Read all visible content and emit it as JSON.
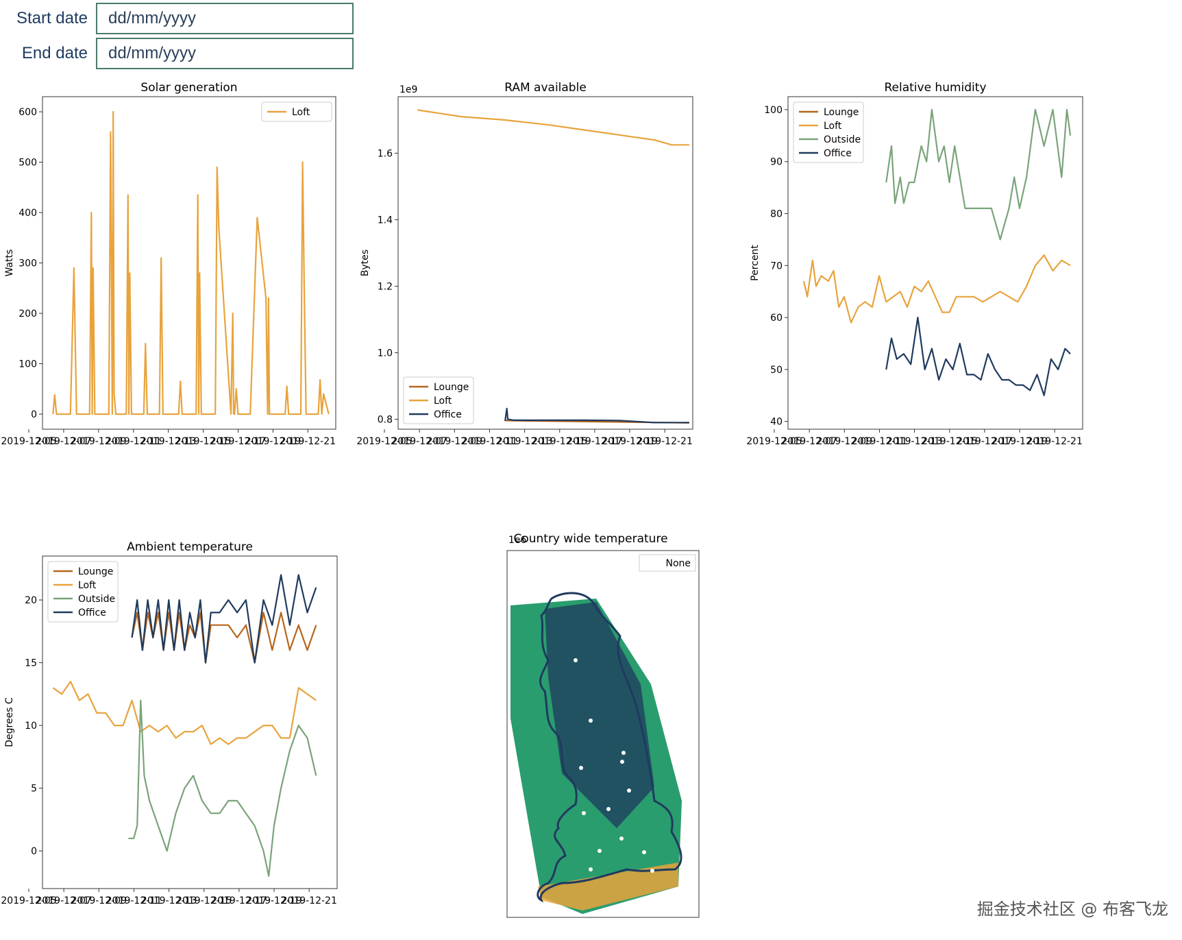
{
  "form": {
    "start_label": "Start date",
    "start_placeholder": "dd/mm/yyyy",
    "end_label": "End date",
    "end_placeholder": "dd/mm/yyyy"
  },
  "colors": {
    "lounge": "#b5651d",
    "loft": "#e8a33d",
    "outside": "#7aa37a",
    "office": "#1f3a5f",
    "map_green": "#2a9d6e",
    "map_navy": "#1f3a5f"
  },
  "watermark": "掘金技术社区 @ 布客飞龙",
  "chart_data": [
    {
      "id": "solar",
      "type": "line",
      "title": "Solar generation",
      "xlabel": "",
      "ylabel": "Watts",
      "ylim": [
        -30,
        630
      ],
      "yticks": [
        0,
        100,
        200,
        300,
        400,
        500,
        600
      ],
      "xtick_labels": [
        "2019-12-05",
        "2019-12-07",
        "2019-12-09",
        "2019-12-11",
        "2019-12-13",
        "2019-12-15",
        "2019-12-17",
        "2019-12-19",
        "2019-12-21"
      ],
      "legend": [
        "Loft"
      ],
      "series": [
        {
          "name": "Loft",
          "color": "#e8a33d",
          "x": [
            0,
            0.1,
            0.2,
            0.3,
            1,
            1.2,
            1.35,
            1.4,
            1.5,
            2.1,
            2.2,
            2.25,
            2.3,
            2.4,
            2.5,
            3.2,
            3.3,
            3.4,
            3.45,
            3.5,
            3.6,
            4.2,
            4.3,
            4.35,
            4.4,
            4.5,
            5.2,
            5.3,
            5.4,
            6.1,
            6.2,
            6.3,
            7.2,
            7.3,
            7.4,
            7.45,
            7.5,
            8.2,
            8.3,
            8.35,
            8.4,
            8.5,
            9.3,
            9.4,
            9.5,
            10.2,
            10.3,
            10.35,
            10.4,
            10.5,
            10.6,
            11.1,
            11.3,
            11.7,
            12.2,
            12.3,
            12.35,
            12.4,
            12.5,
            12.8,
            13.3,
            13.4,
            13.5,
            14.2,
            14.3,
            14.4,
            14.5,
            15.2,
            15.3,
            15.4,
            15.5,
            15.8
          ],
          "y": [
            0,
            38,
            0,
            0,
            0,
            290,
            0,
            0,
            0,
            0,
            400,
            0,
            290,
            0,
            0,
            0,
            560,
            0,
            600,
            40,
            0,
            0,
            435,
            0,
            280,
            0,
            0,
            140,
            0,
            0,
            310,
            0,
            0,
            65,
            0,
            0,
            0,
            0,
            435,
            0,
            280,
            0,
            0,
            490,
            370,
            0,
            200,
            0,
            0,
            50,
            0,
            0,
            0,
            390,
            230,
            0,
            230,
            0,
            0,
            0,
            0,
            55,
            0,
            0,
            500,
            240,
            0,
            0,
            68,
            0,
            40,
            0
          ]
        }
      ]
    },
    {
      "id": "ram",
      "type": "line",
      "title": "RAM available",
      "xlabel": "",
      "ylabel": "Bytes",
      "offset_label": "1e9",
      "ylim": [
        0.77,
        1.77
      ],
      "yticks": [
        0.8,
        1.0,
        1.2,
        1.4,
        1.6
      ],
      "xtick_labels": [
        "2019-12-05",
        "2019-12-07",
        "2019-12-09",
        "2019-12-11",
        "2019-12-13",
        "2019-12-15",
        "2019-12-17",
        "2019-12-19",
        "2019-12-21"
      ],
      "legend": [
        "Lounge",
        "Loft",
        "Office"
      ],
      "series": [
        {
          "name": "Lounge",
          "color": "#b5651d",
          "x": [
            5.5,
            16
          ],
          "y": [
            0.796,
            0.789
          ]
        },
        {
          "name": "Loft",
          "color": "#e8a33d",
          "x": [
            0.5,
            3,
            5.5,
            8,
            10,
            12,
            14,
            15,
            16
          ],
          "y": [
            1.73,
            1.71,
            1.7,
            1.685,
            1.67,
            1.655,
            1.64,
            1.625,
            1.625
          ]
        },
        {
          "name": "Office",
          "color": "#1f3a5f",
          "x": [
            5.5,
            5.6,
            5.65,
            6,
            8,
            10,
            12,
            14,
            16
          ],
          "y": [
            0.795,
            0.832,
            0.8,
            0.797,
            0.797,
            0.797,
            0.796,
            0.79,
            0.79
          ]
        }
      ]
    },
    {
      "id": "humidity",
      "type": "line",
      "title": "Relative humidity",
      "xlabel": "",
      "ylabel": "Percent",
      "ylim": [
        38.5,
        102.5
      ],
      "yticks": [
        40,
        50,
        60,
        70,
        80,
        90,
        100
      ],
      "xtick_labels": [
        "2019-12-05",
        "2019-12-07",
        "2019-12-09",
        "2019-12-11",
        "2019-12-13",
        "2019-12-15",
        "2019-12-17",
        "2019-12-19",
        "2019-12-21"
      ],
      "legend": [
        "Lounge",
        "Loft",
        "Outside",
        "Office"
      ],
      "series": [
        {
          "name": "Lounge",
          "color": "#b5651d",
          "x": [],
          "y": []
        },
        {
          "name": "Loft",
          "color": "#e8a33d",
          "x": [
            0.3,
            0.5,
            0.8,
            1,
            1.3,
            1.7,
            2,
            2.3,
            2.6,
            3,
            3.4,
            3.8,
            4.2,
            4.6,
            5,
            5.4,
            5.8,
            6.2,
            6.6,
            7,
            7.4,
            7.8,
            8.2,
            8.6,
            9,
            9.5,
            10,
            10.5,
            11,
            11.5,
            12,
            12.5,
            13,
            13.5,
            14,
            14.5,
            15,
            15.5
          ],
          "y": [
            67,
            64,
            71,
            66,
            68,
            67,
            69,
            62,
            64,
            59,
            62,
            63,
            62,
            68,
            63,
            64,
            65,
            62,
            66,
            65,
            67,
            64,
            61,
            61,
            64,
            64,
            64,
            63,
            64,
            65,
            64,
            63,
            66,
            70,
            72,
            69,
            71,
            70
          ]
        },
        {
          "name": "Outside",
          "color": "#7aa37a",
          "x": [
            5,
            5.3,
            5.5,
            5.8,
            6,
            6.3,
            6.6,
            7,
            7.3,
            7.6,
            8,
            8.3,
            8.6,
            8.9,
            9.2,
            9.5,
            10,
            10.5,
            11,
            11.5,
            12,
            12.3,
            12.6,
            13,
            13.5,
            14,
            14.5,
            15,
            15.3,
            15.5
          ],
          "y": [
            86,
            93,
            82,
            87,
            82,
            86,
            86,
            93,
            90,
            100,
            90,
            93,
            86,
            93,
            87,
            81,
            81,
            81,
            81,
            75,
            81,
            87,
            81,
            87,
            100,
            93,
            100,
            87,
            100,
            95
          ]
        },
        {
          "name": "Office",
          "color": "#1f3a5f",
          "x": [
            5,
            5.3,
            5.6,
            6,
            6.4,
            6.8,
            7.2,
            7.6,
            8,
            8.4,
            8.8,
            9.2,
            9.6,
            10,
            10.4,
            10.8,
            11.2,
            11.6,
            12,
            12.4,
            12.8,
            13.2,
            13.6,
            14,
            14.4,
            14.8,
            15.2,
            15.5
          ],
          "y": [
            50,
            56,
            52,
            53,
            51,
            60,
            50,
            54,
            48,
            52,
            50,
            55,
            49,
            49,
            48,
            53,
            50,
            48,
            48,
            47,
            47,
            46,
            49,
            45,
            52,
            50,
            54,
            53
          ]
        }
      ]
    },
    {
      "id": "ambient",
      "type": "line",
      "title": "Ambient temperature",
      "xlabel": "",
      "ylabel": "Degrees C",
      "ylim": [
        -3,
        23.5
      ],
      "yticks": [
        0,
        5,
        10,
        15,
        20
      ],
      "xtick_labels": [
        "2019-12-05",
        "2019-12-07",
        "2019-12-09",
        "2019-12-11",
        "2019-12-13",
        "2019-12-15",
        "2019-12-17",
        "2019-12-19",
        "2019-12-21"
      ],
      "legend": [
        "Lounge",
        "Loft",
        "Outside",
        "Office"
      ],
      "series": [
        {
          "name": "Lounge",
          "color": "#b5651d",
          "x": [
            4.5,
            4.8,
            5.1,
            5.4,
            5.7,
            6,
            6.3,
            6.6,
            6.9,
            7.2,
            7.5,
            7.8,
            8.1,
            8.4,
            8.7,
            9,
            9.5,
            10,
            10.5,
            11,
            11.5,
            12,
            12.5,
            13,
            13.5,
            14,
            14.5,
            15
          ],
          "y": [
            17,
            19,
            16,
            19,
            17,
            19,
            16,
            19,
            16,
            19,
            16,
            18,
            17,
            19,
            15,
            18,
            18,
            18,
            17,
            18,
            15,
            19,
            16,
            19,
            16,
            18,
            16,
            18
          ]
        },
        {
          "name": "Loft",
          "color": "#e8a33d",
          "x": [
            0,
            0.5,
            1,
            1.5,
            2,
            2.5,
            3,
            3.5,
            4,
            4.5,
            5,
            5.5,
            6,
            6.5,
            7,
            7.5,
            8,
            8.5,
            9,
            9.5,
            10,
            10.5,
            11,
            11.5,
            12,
            12.5,
            13,
            13.5,
            14,
            14.5,
            15
          ],
          "y": [
            13,
            12.5,
            13.5,
            12,
            12.5,
            11,
            11,
            10,
            10,
            12,
            9.5,
            10,
            9.5,
            10,
            9,
            9.5,
            9.5,
            10,
            8.5,
            9,
            8.5,
            9,
            9,
            9.5,
            10,
            10,
            9,
            9,
            13,
            12.5,
            12
          ]
        },
        {
          "name": "Outside",
          "color": "#7aa37a",
          "x": [
            4.3,
            4.6,
            4.8,
            5,
            5.2,
            5.5,
            6,
            6.5,
            7,
            7.5,
            8,
            8.5,
            9,
            9.5,
            10,
            10.5,
            11,
            11.5,
            12,
            12.3,
            12.6,
            13,
            13.5,
            14,
            14.5,
            15
          ],
          "y": [
            1,
            1,
            2,
            12,
            6,
            4,
            2,
            0,
            3,
            5,
            6,
            4,
            3,
            3,
            4,
            4,
            3,
            2,
            0,
            -2,
            2,
            5,
            8,
            10,
            9,
            6
          ]
        },
        {
          "name": "Office",
          "color": "#1f3a5f",
          "x": [
            4.5,
            4.8,
            5.1,
            5.4,
            5.7,
            6,
            6.3,
            6.6,
            6.9,
            7.2,
            7.5,
            7.8,
            8.1,
            8.4,
            8.7,
            9,
            9.5,
            10,
            10.5,
            11,
            11.5,
            12,
            12.5,
            13,
            13.5,
            14,
            14.5,
            15
          ],
          "y": [
            17,
            20,
            16,
            20,
            17,
            20,
            16,
            20,
            16,
            20,
            16,
            19,
            17,
            20,
            15,
            19,
            19,
            20,
            19,
            20,
            15,
            20,
            18,
            22,
            18,
            22,
            19,
            21
          ]
        }
      ]
    },
    {
      "id": "country",
      "type": "heatmap",
      "title": "Country wide temperature",
      "offset_label": "1e6",
      "legend": [
        "None"
      ]
    }
  ]
}
